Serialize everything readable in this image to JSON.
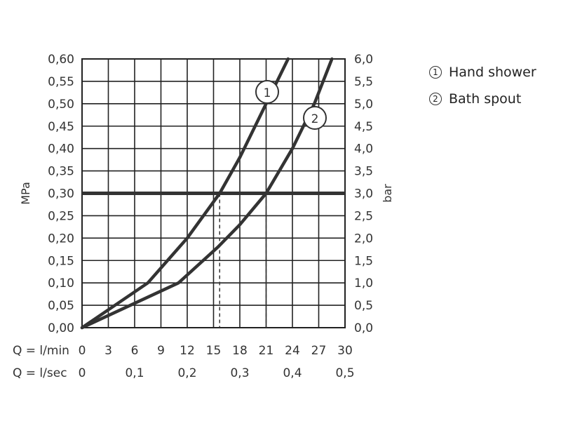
{
  "chart_data": {
    "type": "line",
    "y_left": {
      "label": "MPa",
      "ticks": [
        "0,00",
        "0,05",
        "0,10",
        "0,15",
        "0,20",
        "0,25",
        "0,30",
        "0,35",
        "0,40",
        "0,45",
        "0,50",
        "0,55",
        "0,60"
      ],
      "range": [
        0,
        0.6
      ]
    },
    "y_right": {
      "label": "bar",
      "ticks": [
        "0,0",
        "0,5",
        "1,0",
        "1,5",
        "2,0",
        "2,5",
        "3,0",
        "3,5",
        "4,0",
        "4,5",
        "5,0",
        "5,5",
        "6,0"
      ],
      "range": [
        0,
        6
      ]
    },
    "x_rows": [
      {
        "label": "Q = l/min",
        "ticks": [
          {
            "v": 0,
            "t": "0"
          },
          {
            "v": 3,
            "t": "3"
          },
          {
            "v": 6,
            "t": "6"
          },
          {
            "v": 9,
            "t": "9"
          },
          {
            "v": 12,
            "t": "12"
          },
          {
            "v": 15,
            "t": "15"
          },
          {
            "v": 18,
            "t": "18"
          },
          {
            "v": 21,
            "t": "21"
          },
          {
            "v": 24,
            "t": "24"
          },
          {
            "v": 27,
            "t": "27"
          },
          {
            "v": 30,
            "t": "30"
          }
        ]
      },
      {
        "label": "Q = l/sec",
        "ticks": [
          {
            "v": 0,
            "t": "0"
          },
          {
            "v": 6,
            "t": "0,1"
          },
          {
            "v": 12,
            "t": "0,2"
          },
          {
            "v": 18,
            "t": "0,3"
          },
          {
            "v": 24,
            "t": "0,4"
          },
          {
            "v": 30,
            "t": "0,5"
          }
        ]
      }
    ],
    "x_range": [
      0,
      30
    ],
    "grid": true,
    "series": [
      {
        "name": "Hand shower",
        "marker": "1",
        "points": [
          [
            0,
            0
          ],
          [
            7.5,
            0.1
          ],
          [
            12,
            0.2
          ],
          [
            15.7,
            0.3
          ],
          [
            18,
            0.38
          ],
          [
            21,
            0.5
          ],
          [
            23.5,
            0.6
          ]
        ]
      },
      {
        "name": "Bath spout",
        "marker": "2",
        "points": [
          [
            0,
            0
          ],
          [
            11,
            0.1
          ],
          [
            15.5,
            0.18
          ],
          [
            18,
            0.23
          ],
          [
            21,
            0.3
          ],
          [
            24,
            0.4
          ],
          [
            26.5,
            0.5
          ],
          [
            28.5,
            0.6
          ]
        ]
      }
    ],
    "reference_line": {
      "y": 0.3
    },
    "intersections": [
      15.7,
      21
    ]
  },
  "legend": {
    "items": [
      {
        "num": "1",
        "label": "Hand shower"
      },
      {
        "num": "2",
        "label": "Bath spout"
      }
    ]
  }
}
